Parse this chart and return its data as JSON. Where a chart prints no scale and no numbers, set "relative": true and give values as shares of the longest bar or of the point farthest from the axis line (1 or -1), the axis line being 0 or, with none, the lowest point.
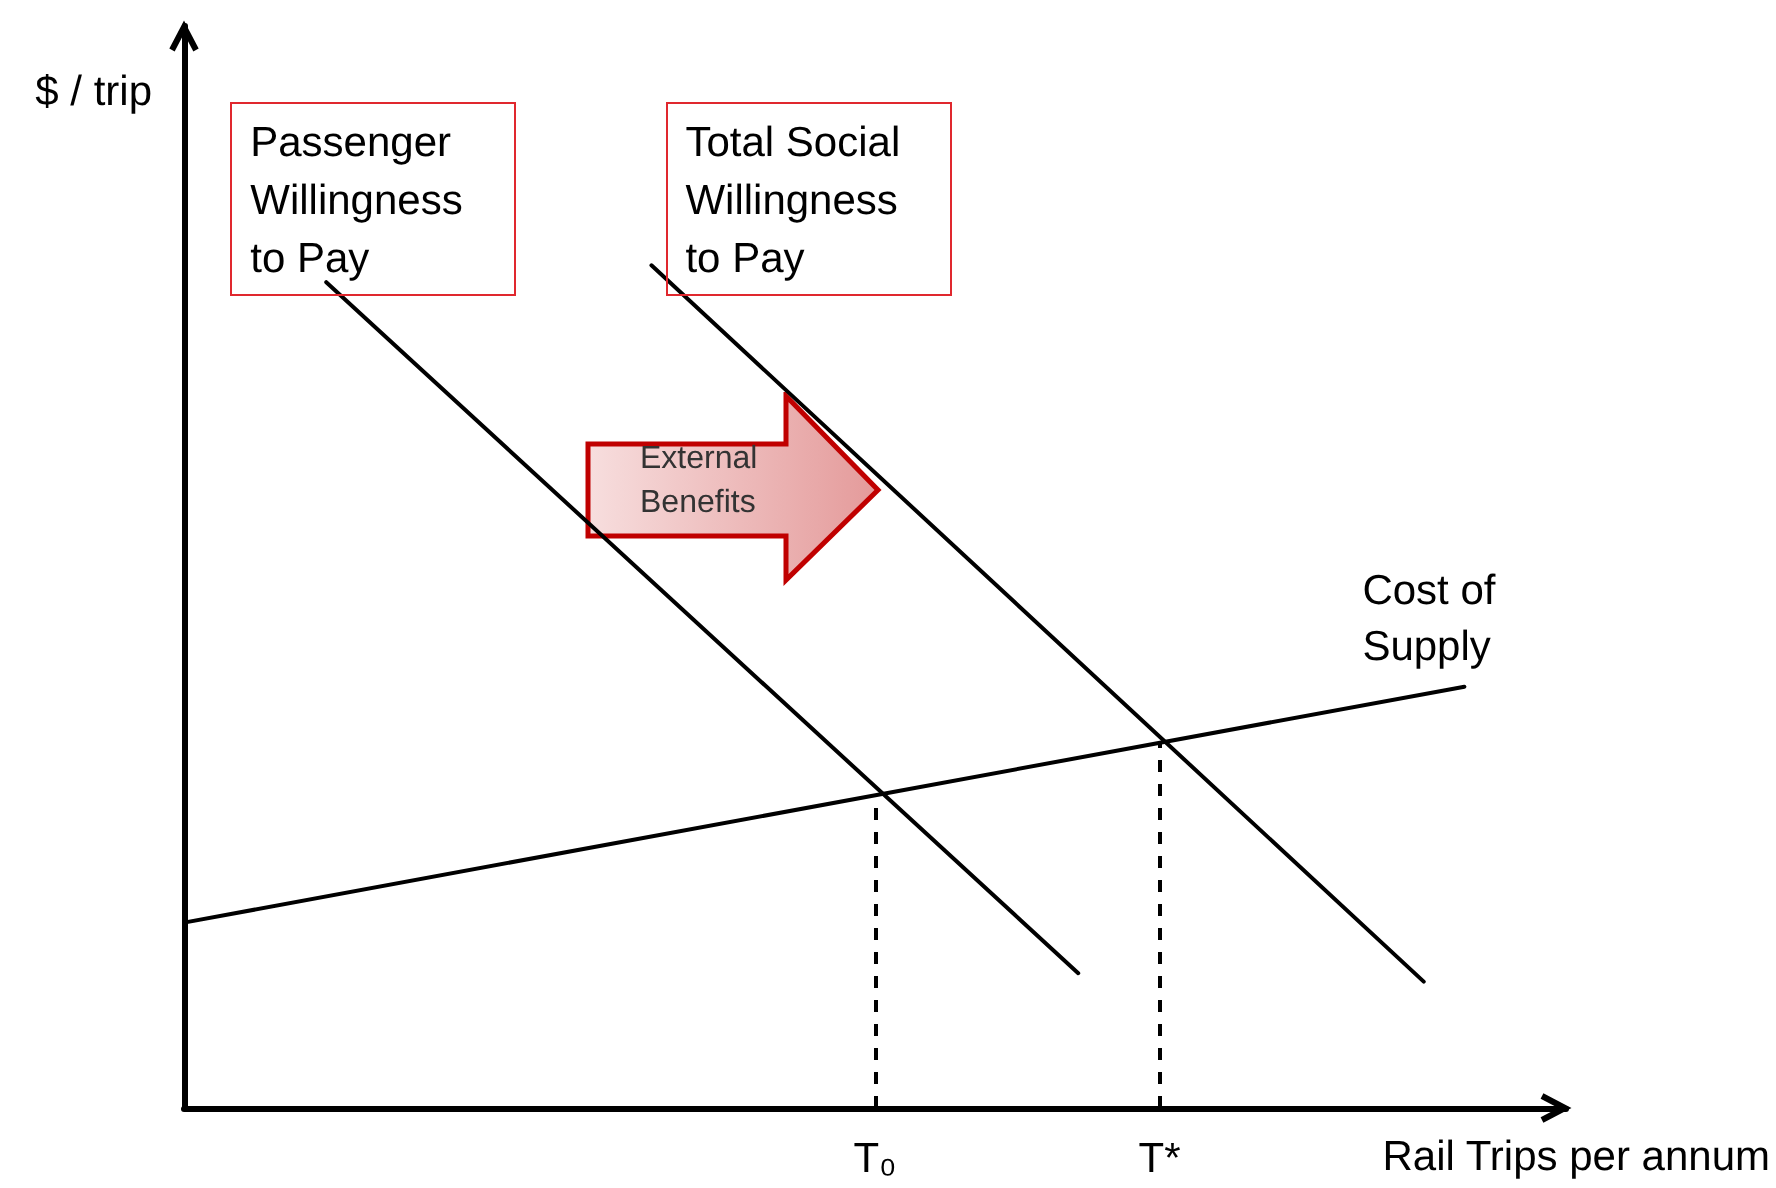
{
  "chart_data": {
    "type": "line",
    "relative": true,
    "xlabel": "Rail Trips per annum",
    "ylabel": "$ / trip",
    "marker": "none",
    "line_style": "solid",
    "categories": [
      null,
      null,
      null,
      null,
      null,
      null,
      null,
      null,
      null,
      null,
      null,
      null,
      null,
      null,
      null,
      null,
      null,
      null,
      null,
      null,
      null,
      null,
      null,
      null,
      null,
      null,
      null,
      null,
      null,
      null,
      null,
      null,
      null,
      null,
      "T₀",
      null,
      null,
      null,
      null,
      null,
      null,
      null,
      null,
      null,
      null,
      null,
      null,
      null,
      "T*",
      null,
      null,
      null,
      null,
      null,
      null,
      null,
      null,
      null,
      null,
      null,
      null,
      null,
      null,
      null,
      null,
      null,
      null,
      null,
      null
    ],
    "series": [
      {
        "name": "Passenger Willingness to Pay",
        "color": "#000000",
        "values": [
          null,
          null,
          null,
          null,
          null,
          null,
          null,
          0.98,
          null,
          null,
          null,
          null,
          null,
          null,
          null,
          null,
          null,
          null,
          null,
          null,
          null,
          null,
          null,
          null,
          null,
          null,
          null,
          null,
          null,
          null,
          null,
          null,
          null,
          null,
          null,
          null,
          null,
          null,
          null,
          null,
          null,
          null,
          null,
          null,
          0.16,
          null,
          null,
          null,
          null,
          null,
          null,
          null,
          null,
          null,
          null,
          null,
          null,
          null,
          null,
          null,
          null,
          null,
          null,
          null,
          null,
          null,
          null,
          null,
          null
        ]
      },
      {
        "name": "Total Social Willingness to Pay",
        "color": "#000000",
        "values": [
          null,
          null,
          null,
          null,
          null,
          null,
          null,
          null,
          null,
          null,
          null,
          null,
          null,
          null,
          null,
          null,
          null,
          null,
          null,
          null,
          null,
          null,
          null,
          1,
          null,
          null,
          null,
          null,
          null,
          null,
          null,
          null,
          null,
          null,
          null,
          null,
          null,
          null,
          null,
          null,
          null,
          null,
          null,
          null,
          null,
          null,
          null,
          null,
          null,
          null,
          null,
          null,
          null,
          null,
          null,
          null,
          null,
          null,
          null,
          null,
          null,
          0.15,
          null,
          null,
          null,
          null,
          null,
          null,
          null
        ]
      },
      {
        "name": "Cost of Supply",
        "color": "#000000",
        "values": [
          0.22,
          null,
          null,
          null,
          null,
          null,
          null,
          null,
          null,
          null,
          null,
          null,
          null,
          null,
          null,
          null,
          null,
          null,
          null,
          null,
          null,
          null,
          null,
          null,
          null,
          null,
          null,
          null,
          null,
          null,
          null,
          null,
          null,
          null,
          null,
          null,
          null,
          null,
          null,
          null,
          null,
          null,
          null,
          null,
          null,
          null,
          null,
          null,
          null,
          null,
          null,
          null,
          null,
          null,
          null,
          null,
          null,
          null,
          null,
          null,
          null,
          null,
          null,
          0.5,
          null,
          null,
          null,
          null,
          null
        ]
      }
    ],
    "ref_lines": [
      {
        "axis": "x",
        "value": "T₀",
        "color": "#000000",
        "line_style": "dashed"
      },
      {
        "axis": "x",
        "value": "T*",
        "color": "#000000",
        "line_style": "dashed"
      }
    ],
    "annotations": [
      "External Benefits"
    ]
  }
}
